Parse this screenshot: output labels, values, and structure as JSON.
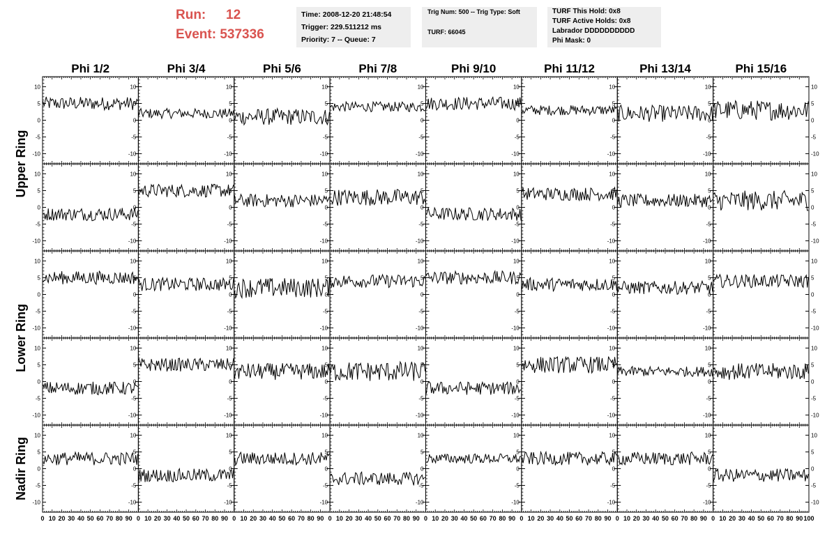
{
  "header": {
    "run_label": "Run:",
    "run_value": "12",
    "event_label": "Event:",
    "event_value": "537336"
  },
  "info_time": {
    "time": "Time: 2008-12-20 21:48:54",
    "trigger": "Trigger: 229.511212 ms",
    "priority": "Priority: 7 -- Queue: 7"
  },
  "info_trig": {
    "trig": "Trig Num: 500 -- Trig Type: Soft",
    "turf": "TURF: 66045"
  },
  "info_turf": {
    "this_hold": "TURF This Hold: 0x8",
    "active_holds": "TURF Active Holds: 0x8",
    "labrador": "Labrador DDDDDDDDDD",
    "phi_mask": "Phi Mask: 0"
  },
  "colors": {
    "accent": "#d9534f",
    "info_bg": "#eeeeee",
    "trace": "#000000"
  },
  "chart_data": {
    "type": "line",
    "columns": [
      "Phi 1/2",
      "Phi 3/4",
      "Phi 5/6",
      "Phi 7/8",
      "Phi 9/10",
      "Phi 11/12",
      "Phi 13/14",
      "Phi 15/16"
    ],
    "row_labels": [
      "Upper Ring",
      "Lower Ring",
      "Nadir Ring"
    ],
    "rows": 5,
    "xlim": [
      0,
      100
    ],
    "ylim": [
      -13,
      13
    ],
    "x_ticks": [
      "0",
      "10",
      "20",
      "30",
      "40",
      "50",
      "60",
      "70",
      "80",
      "90",
      "100"
    ],
    "y_ticks": [
      "10",
      "5",
      "0",
      "-5",
      "-10"
    ],
    "samples": 92,
    "series_levels": [
      [
        5,
        2,
        1,
        4,
        5,
        3,
        2,
        3
      ],
      [
        -2,
        5,
        2,
        3,
        -2,
        4,
        2,
        2
      ],
      [
        5,
        3,
        2,
        4,
        5,
        3,
        2,
        4
      ],
      [
        -2,
        5,
        3,
        3,
        -2,
        5,
        3,
        3
      ],
      [
        3,
        -2,
        3,
        -3,
        3,
        3,
        3,
        -2
      ]
    ],
    "series_amplitudes": [
      [
        2,
        1.5,
        2.5,
        1.5,
        2,
        1.5,
        2.5,
        3
      ],
      [
        2,
        2,
        2,
        2.5,
        2,
        2,
        2,
        3
      ],
      [
        2,
        2,
        3,
        2,
        2,
        2,
        2,
        2
      ],
      [
        2,
        2,
        2.5,
        3,
        2,
        2.5,
        1.5,
        2.5
      ],
      [
        2,
        2,
        2,
        2,
        1.5,
        2,
        2,
        2
      ]
    ]
  }
}
